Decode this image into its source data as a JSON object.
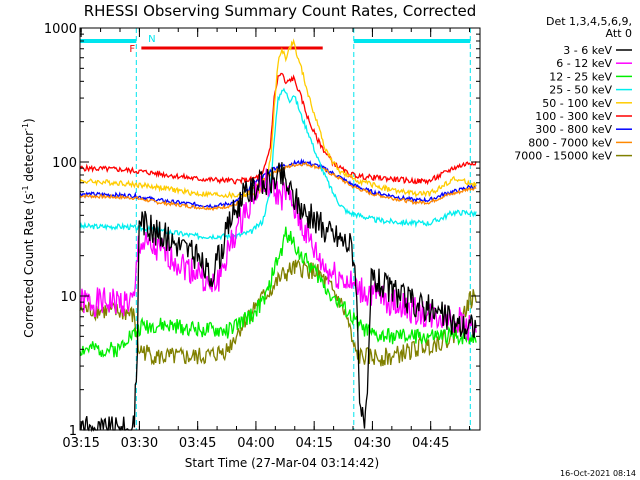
{
  "chart_data": {
    "type": "line",
    "title": "RHESSI Observing Summary Count Rates, Corrected",
    "xlabel": "Start Time (27-Mar-04 03:14:42)",
    "ylabel": "Corrected Count Rate (s⁻¹ detector⁻¹)",
    "ylabel_parts": {
      "main": "Corrected Count Rate (s",
      "exp1": "-1",
      "mid": " detector",
      "exp2": "-1",
      "end": ")"
    },
    "yscale": "log",
    "ylim": [
      1,
      1000
    ],
    "xlim_minutes": [
      0,
      103
    ],
    "x_ticks": [
      {
        "label": "03:15",
        "min": 0.3
      },
      {
        "label": "03:30",
        "min": 15.3
      },
      {
        "label": "03:45",
        "min": 30.3
      },
      {
        "label": "04:00",
        "min": 45.3
      },
      {
        "label": "04:15",
        "min": 60.3
      },
      {
        "label": "04:30",
        "min": 75.3
      },
      {
        "label": "04:45",
        "min": 90.3
      }
    ],
    "y_ticks": [
      {
        "label": "1",
        "value": 1
      },
      {
        "label": "10",
        "value": 10
      },
      {
        "label": "100",
        "value": 100
      },
      {
        "label": "1000",
        "value": 1000
      }
    ],
    "legend_header": [
      "Det 1,3,4,5,6,9,",
      "Att 0"
    ],
    "legend_position": "right",
    "timestamp": "16-Oct-2021 08:14",
    "annotations": {
      "night": {
        "color": "#00e5ee",
        "bars": [
          [
            0,
            14.5
          ],
          [
            70.5,
            100.5
          ]
        ],
        "label": "N",
        "label_min": 16,
        "dashed_lines_min": [
          14.5,
          70.5,
          100.5
        ]
      },
      "flare": {
        "color": "#ee0000",
        "start_min": 15.8,
        "end_min": 62.5,
        "label": "F"
      }
    },
    "series": [
      {
        "name": "3 - 6 keV",
        "color": "#000000",
        "noise": 0.22,
        "points": [
          [
            0,
            1.0
          ],
          [
            14,
            1.0
          ],
          [
            14.3,
            2.0
          ],
          [
            14.8,
            4
          ],
          [
            15.2,
            40
          ],
          [
            19,
            30
          ],
          [
            23,
            27
          ],
          [
            28,
            22
          ],
          [
            31,
            18
          ],
          [
            33.5,
            14
          ],
          [
            36,
            20
          ],
          [
            39,
            40
          ],
          [
            42,
            55
          ],
          [
            45,
            65
          ],
          [
            48,
            70
          ],
          [
            50,
            75
          ],
          [
            52,
            80
          ],
          [
            53,
            70
          ],
          [
            55,
            55
          ],
          [
            58,
            42
          ],
          [
            61,
            35
          ],
          [
            64,
            30
          ],
          [
            67,
            27
          ],
          [
            70,
            24
          ],
          [
            71,
            15
          ],
          [
            72,
            2
          ],
          [
            73,
            1.0
          ],
          [
            74,
            1.5
          ],
          [
            75,
            14
          ],
          [
            78,
            12
          ],
          [
            82,
            10
          ],
          [
            86,
            9
          ],
          [
            90,
            8
          ],
          [
            94,
            7
          ],
          [
            98,
            6
          ],
          [
            100,
            6
          ],
          [
            102,
            6
          ]
        ]
      },
      {
        "name": "6 - 12 keV",
        "color": "#ff00ff",
        "noise": 0.22,
        "points": [
          [
            0,
            9
          ],
          [
            14,
            9
          ],
          [
            15,
            25
          ],
          [
            19,
            22
          ],
          [
            23,
            20
          ],
          [
            28,
            16
          ],
          [
            31,
            15
          ],
          [
            33.5,
            11
          ],
          [
            36,
            14
          ],
          [
            39,
            25
          ],
          [
            42,
            40
          ],
          [
            45,
            60
          ],
          [
            48,
            70
          ],
          [
            50,
            60
          ],
          [
            52,
            55
          ],
          [
            53,
            60
          ],
          [
            55,
            45
          ],
          [
            58,
            30
          ],
          [
            61,
            20
          ],
          [
            64,
            15
          ],
          [
            67,
            14
          ],
          [
            70,
            12
          ],
          [
            72,
            11
          ],
          [
            76,
            10
          ],
          [
            80,
            9
          ],
          [
            85,
            8
          ],
          [
            90,
            7
          ],
          [
            95,
            7
          ],
          [
            100,
            6
          ],
          [
            102,
            6
          ]
        ]
      },
      {
        "name": "12 - 25 keV",
        "color": "#00ee00",
        "noise": 0.12,
        "points": [
          [
            0,
            4
          ],
          [
            10,
            4
          ],
          [
            12,
            5
          ],
          [
            14,
            5.2
          ],
          [
            16,
            6
          ],
          [
            22,
            6
          ],
          [
            28,
            5.8
          ],
          [
            34,
            5.5
          ],
          [
            38,
            5.5
          ],
          [
            42,
            6.5
          ],
          [
            45,
            7.5
          ],
          [
            48,
            10
          ],
          [
            50,
            16
          ],
          [
            52,
            22
          ],
          [
            53,
            30
          ],
          [
            55,
            25
          ],
          [
            57,
            20
          ],
          [
            60,
            16
          ],
          [
            62,
            13
          ],
          [
            65,
            10
          ],
          [
            68,
            8
          ],
          [
            72,
            6
          ],
          [
            76,
            5
          ],
          [
            82,
            5
          ],
          [
            88,
            5
          ],
          [
            94,
            5
          ],
          [
            100,
            5
          ],
          [
            102,
            5
          ]
        ]
      },
      {
        "name": "25 - 50 keV",
        "color": "#00eeee",
        "noise": 0.04,
        "points": [
          [
            0,
            33
          ],
          [
            12,
            33
          ],
          [
            15,
            32
          ],
          [
            20,
            31
          ],
          [
            30,
            28
          ],
          [
            40,
            28
          ],
          [
            44,
            30
          ],
          [
            47,
            36
          ],
          [
            49,
            60
          ],
          [
            50,
            150
          ],
          [
            51,
            290
          ],
          [
            52,
            350
          ],
          [
            53,
            330
          ],
          [
            54,
            290
          ],
          [
            55,
            320
          ],
          [
            56,
            270
          ],
          [
            57,
            220
          ],
          [
            59,
            160
          ],
          [
            61,
            110
          ],
          [
            63,
            80
          ],
          [
            65,
            60
          ],
          [
            67,
            48
          ],
          [
            69,
            42
          ],
          [
            72,
            40
          ],
          [
            76,
            37
          ],
          [
            80,
            36
          ],
          [
            86,
            35
          ],
          [
            90,
            35
          ],
          [
            93,
            38
          ],
          [
            96,
            42
          ],
          [
            100,
            42
          ],
          [
            102,
            41
          ]
        ]
      },
      {
        "name": "50 - 100 keV",
        "color": "#ffcc00",
        "noise": 0.04,
        "points": [
          [
            0,
            72
          ],
          [
            10,
            70
          ],
          [
            14,
            68
          ],
          [
            20,
            65
          ],
          [
            30,
            58
          ],
          [
            40,
            56
          ],
          [
            44,
            58
          ],
          [
            47,
            62
          ],
          [
            49,
            100
          ],
          [
            50,
            250
          ],
          [
            51,
            550
          ],
          [
            52,
            700
          ],
          [
            53,
            600
          ],
          [
            54,
            700
          ],
          [
            55,
            800
          ],
          [
            56,
            600
          ],
          [
            57,
            500
          ],
          [
            59,
            300
          ],
          [
            61,
            200
          ],
          [
            63,
            130
          ],
          [
            65,
            100
          ],
          [
            67,
            85
          ],
          [
            69,
            78
          ],
          [
            72,
            72
          ],
          [
            80,
            62
          ],
          [
            86,
            58
          ],
          [
            90,
            58
          ],
          [
            93,
            65
          ],
          [
            96,
            75
          ],
          [
            100,
            70
          ],
          [
            102,
            68
          ]
        ]
      },
      {
        "name": "100 - 300 keV",
        "color": "#ff0000",
        "noise": 0.04,
        "points": [
          [
            0,
            90
          ],
          [
            10,
            88
          ],
          [
            14,
            86
          ],
          [
            20,
            82
          ],
          [
            30,
            75
          ],
          [
            40,
            72
          ],
          [
            44,
            74
          ],
          [
            47,
            80
          ],
          [
            49,
            130
          ],
          [
            50,
            300
          ],
          [
            51,
            430
          ],
          [
            52,
            460
          ],
          [
            53,
            380
          ],
          [
            54,
            410
          ],
          [
            55,
            420
          ],
          [
            56,
            360
          ],
          [
            57,
            300
          ],
          [
            59,
            200
          ],
          [
            61,
            150
          ],
          [
            63,
            120
          ],
          [
            65,
            100
          ],
          [
            67,
            90
          ],
          [
            69,
            82
          ],
          [
            72,
            78
          ],
          [
            80,
            75
          ],
          [
            86,
            72
          ],
          [
            90,
            72
          ],
          [
            93,
            80
          ],
          [
            96,
            90
          ],
          [
            100,
            98
          ],
          [
            102,
            100
          ]
        ]
      },
      {
        "name": "300 - 800 keV",
        "color": "#0000ff",
        "noise": 0.03,
        "points": [
          [
            0,
            58
          ],
          [
            14,
            56
          ],
          [
            20,
            52
          ],
          [
            25,
            50
          ],
          [
            30,
            48
          ],
          [
            35,
            47
          ],
          [
            40,
            50
          ],
          [
            45,
            70
          ],
          [
            50,
            90
          ],
          [
            55,
            98
          ],
          [
            58,
            100
          ],
          [
            62,
            92
          ],
          [
            66,
            80
          ],
          [
            70,
            68
          ],
          [
            75,
            60
          ],
          [
            80,
            56
          ],
          [
            86,
            52
          ],
          [
            90,
            52
          ],
          [
            94,
            58
          ],
          [
            98,
            62
          ],
          [
            100,
            65
          ],
          [
            102,
            66
          ]
        ]
      },
      {
        "name": "800 - 7000 keV",
        "color": "#ff8800",
        "noise": 0.025,
        "points": [
          [
            0,
            56
          ],
          [
            14,
            54
          ],
          [
            20,
            50
          ],
          [
            25,
            48
          ],
          [
            30,
            46
          ],
          [
            35,
            45
          ],
          [
            40,
            48
          ],
          [
            45,
            65
          ],
          [
            50,
            85
          ],
          [
            55,
            95
          ],
          [
            58,
            97
          ],
          [
            62,
            90
          ],
          [
            66,
            78
          ],
          [
            70,
            66
          ],
          [
            75,
            58
          ],
          [
            80,
            54
          ],
          [
            86,
            50
          ],
          [
            90,
            50
          ],
          [
            94,
            56
          ],
          [
            98,
            60
          ],
          [
            100,
            63
          ],
          [
            102,
            64
          ]
        ]
      },
      {
        "name": "7000 - 15000 keV",
        "color": "#808000",
        "noise": 0.14,
        "points": [
          [
            0,
            8
          ],
          [
            12,
            7.5
          ],
          [
            14,
            7
          ],
          [
            15,
            4
          ],
          [
            17,
            3.8
          ],
          [
            20,
            3.5
          ],
          [
            25,
            3.5
          ],
          [
            30,
            3.5
          ],
          [
            34,
            3.6
          ],
          [
            38,
            4
          ],
          [
            40,
            5
          ],
          [
            43,
            7
          ],
          [
            46,
            9
          ],
          [
            49,
            11
          ],
          [
            52,
            14
          ],
          [
            55,
            16
          ],
          [
            58,
            16
          ],
          [
            61,
            15
          ],
          [
            64,
            12
          ],
          [
            67,
            9
          ],
          [
            69,
            6.5
          ],
          [
            70.5,
            4
          ],
          [
            72,
            3.5
          ],
          [
            76,
            3.5
          ],
          [
            80,
            3.5
          ],
          [
            84,
            3.8
          ],
          [
            88,
            4.2
          ],
          [
            92,
            4.5
          ],
          [
            96,
            5
          ],
          [
            98,
            6
          ],
          [
            100,
            9
          ],
          [
            102,
            10
          ]
        ]
      }
    ]
  }
}
